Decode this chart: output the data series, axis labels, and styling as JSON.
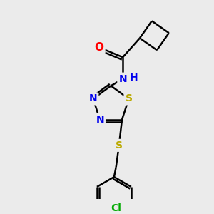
{
  "background_color": "#ebebeb",
  "atom_colors": {
    "O": "#ff0000",
    "N": "#0000ee",
    "S": "#bbaa00",
    "Cl": "#00aa00",
    "C": "#000000",
    "H": "#0000ee"
  },
  "bond_width": 1.8,
  "font_size": 10,
  "figsize": [
    3.0,
    3.0
  ],
  "dpi": 100
}
